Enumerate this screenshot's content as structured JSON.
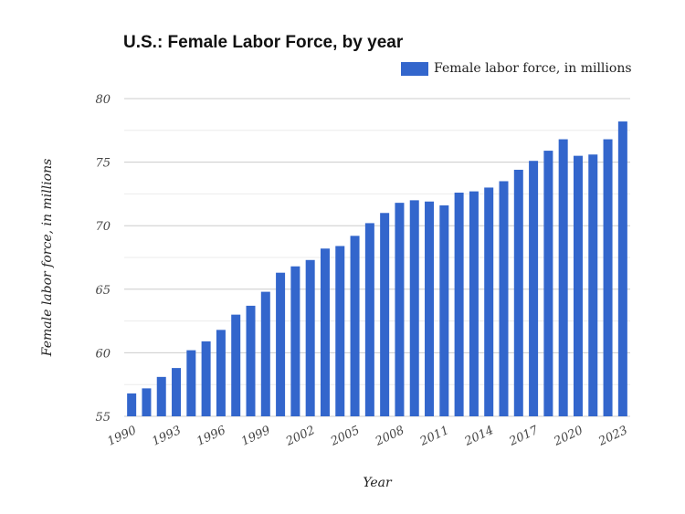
{
  "chart_data": {
    "type": "bar",
    "title": "U.S.: Female Labor Force, by year",
    "xlabel": "Year",
    "ylabel": "Female labor force, in millions",
    "legend": {
      "entries": [
        "Female labor force, in millions"
      ],
      "placement": "top-right"
    },
    "color": "#3366cc",
    "ylim": [
      55,
      80
    ],
    "yticks": [
      55,
      60,
      65,
      70,
      75,
      80
    ],
    "grid": true,
    "xtick_labels": [
      "1990",
      "1993",
      "1996",
      "1999",
      "2002",
      "2005",
      "2008",
      "2011",
      "2014",
      "2017",
      "2020",
      "2023"
    ],
    "categories": [
      "1990",
      "1991",
      "1992",
      "1993",
      "1994",
      "1995",
      "1996",
      "1997",
      "1998",
      "1999",
      "2000",
      "2001",
      "2002",
      "2003",
      "2004",
      "2005",
      "2006",
      "2007",
      "2008",
      "2009",
      "2010",
      "2011",
      "2012",
      "2013",
      "2014",
      "2015",
      "2016",
      "2017",
      "2018",
      "2019",
      "2020",
      "2021",
      "2022",
      "2023"
    ],
    "series": [
      {
        "name": "Female labor force, in millions",
        "values": [
          56.8,
          57.2,
          58.1,
          58.8,
          60.2,
          60.9,
          61.8,
          63.0,
          63.7,
          64.8,
          66.3,
          66.8,
          67.3,
          68.2,
          68.4,
          69.2,
          70.2,
          71.0,
          71.8,
          72.0,
          71.9,
          71.6,
          72.6,
          72.7,
          73.0,
          73.5,
          74.4,
          75.1,
          75.9,
          76.8,
          75.5,
          75.6,
          76.8,
          78.2
        ]
      }
    ]
  }
}
